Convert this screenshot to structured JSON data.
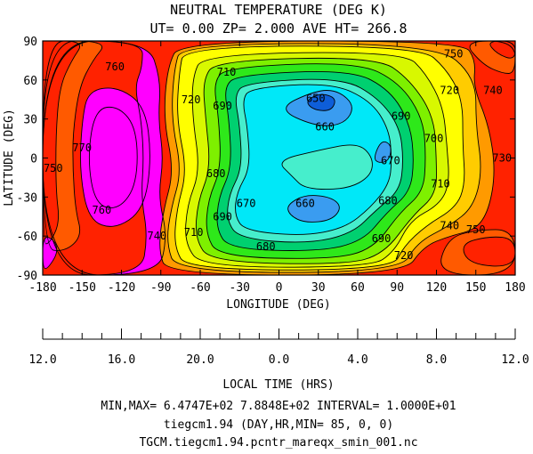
{
  "chart_data": {
    "type": "heatmap",
    "title_lines": [
      "NEUTRAL TEMPERATURE (DEG K)",
      "UT= 0.00 ZP=  2.000 AVE HT= 266.8"
    ],
    "xlabel": "LONGITUDE (DEG)",
    "ylabel": "LATITUDE (DEG)",
    "xlim": [
      -180,
      180
    ],
    "ylim": [
      -90,
      90
    ],
    "x_ticks": [
      "-180",
      "-150",
      "-120",
      "-90",
      "-60",
      "-30",
      "0",
      "30",
      "60",
      "90",
      "120",
      "150",
      "180"
    ],
    "y_ticks": [
      "90",
      "60",
      "30",
      "0",
      "-30",
      "-60",
      "-90"
    ],
    "local_time_label": "LOCAL TIME (HRS)",
    "local_time_ticks": [
      "12.0",
      "16.0",
      "20.0",
      "0.0",
      "4.0",
      "8.0",
      "12.0"
    ],
    "contour_levels": [
      650,
      660,
      670,
      680,
      690,
      700,
      710,
      720,
      730,
      740,
      750,
      760,
      770
    ],
    "level_colors": {
      "640": "#0e5ed8",
      "650": "#3a9cf0",
      "660": "#00e8f8",
      "670": "#46eecc",
      "680": "#00d070",
      "690": "#2ee81a",
      "700": "#7ef000",
      "710": "#d8f800",
      "720": "#ffff00",
      "730": "#ffcc00",
      "740": "#ff9a00",
      "750": "#ff5a00",
      "760": "#ff2200",
      "770": "#ff00ff"
    },
    "contour_labels": [
      {
        "text": "760",
        "lon": -125,
        "lat": 70
      },
      {
        "text": "770",
        "lon": -150,
        "lat": 8
      },
      {
        "text": "750",
        "lon": -172,
        "lat": -8
      },
      {
        "text": "760",
        "lon": -135,
        "lat": -40
      },
      {
        "text": "740",
        "lon": -93,
        "lat": -60
      },
      {
        "text": "710",
        "lon": -40,
        "lat": 66
      },
      {
        "text": "720",
        "lon": -67,
        "lat": 45
      },
      {
        "text": "690",
        "lon": -43,
        "lat": 40
      },
      {
        "text": "650",
        "lon": 28,
        "lat": 46
      },
      {
        "text": "660",
        "lon": 35,
        "lat": 24
      },
      {
        "text": "670",
        "lon": 85,
        "lat": -2
      },
      {
        "text": "680",
        "lon": -48,
        "lat": -12
      },
      {
        "text": "670",
        "lon": -25,
        "lat": -35
      },
      {
        "text": "660",
        "lon": 20,
        "lat": -35
      },
      {
        "text": "680",
        "lon": -10,
        "lat": -68
      },
      {
        "text": "690",
        "lon": -43,
        "lat": -45
      },
      {
        "text": "710",
        "lon": -65,
        "lat": -57
      },
      {
        "text": "690",
        "lon": 93,
        "lat": 32
      },
      {
        "text": "690",
        "lon": 78,
        "lat": -62
      },
      {
        "text": "680",
        "lon": 83,
        "lat": -33
      },
      {
        "text": "700",
        "lon": 118,
        "lat": 15
      },
      {
        "text": "710",
        "lon": 123,
        "lat": -20
      },
      {
        "text": "720",
        "lon": 130,
        "lat": 52
      },
      {
        "text": "730",
        "lon": 170,
        "lat": 0
      },
      {
        "text": "720",
        "lon": 95,
        "lat": -75
      },
      {
        "text": "740",
        "lon": 130,
        "lat": -52
      },
      {
        "text": "740",
        "lon": 163,
        "lat": 52
      },
      {
        "text": "750",
        "lon": 133,
        "lat": 80
      },
      {
        "text": "750",
        "lon": 150,
        "lat": -55
      }
    ],
    "stats": {
      "min": "6.4747E+02",
      "max": "7.8848E+02",
      "interval": "1.0000E+01"
    }
  },
  "footer": {
    "line1": "MIN,MAX=  6.4747E+02  7.8848E+02 INTERVAL=  1.0000E+01",
    "line2": "tiegcm1.94 (DAY,HR,MIN= 85, 0, 0)",
    "line3": "TGCM.tiegcm1.94.pcntr_mareqx_smin_001.nc"
  }
}
